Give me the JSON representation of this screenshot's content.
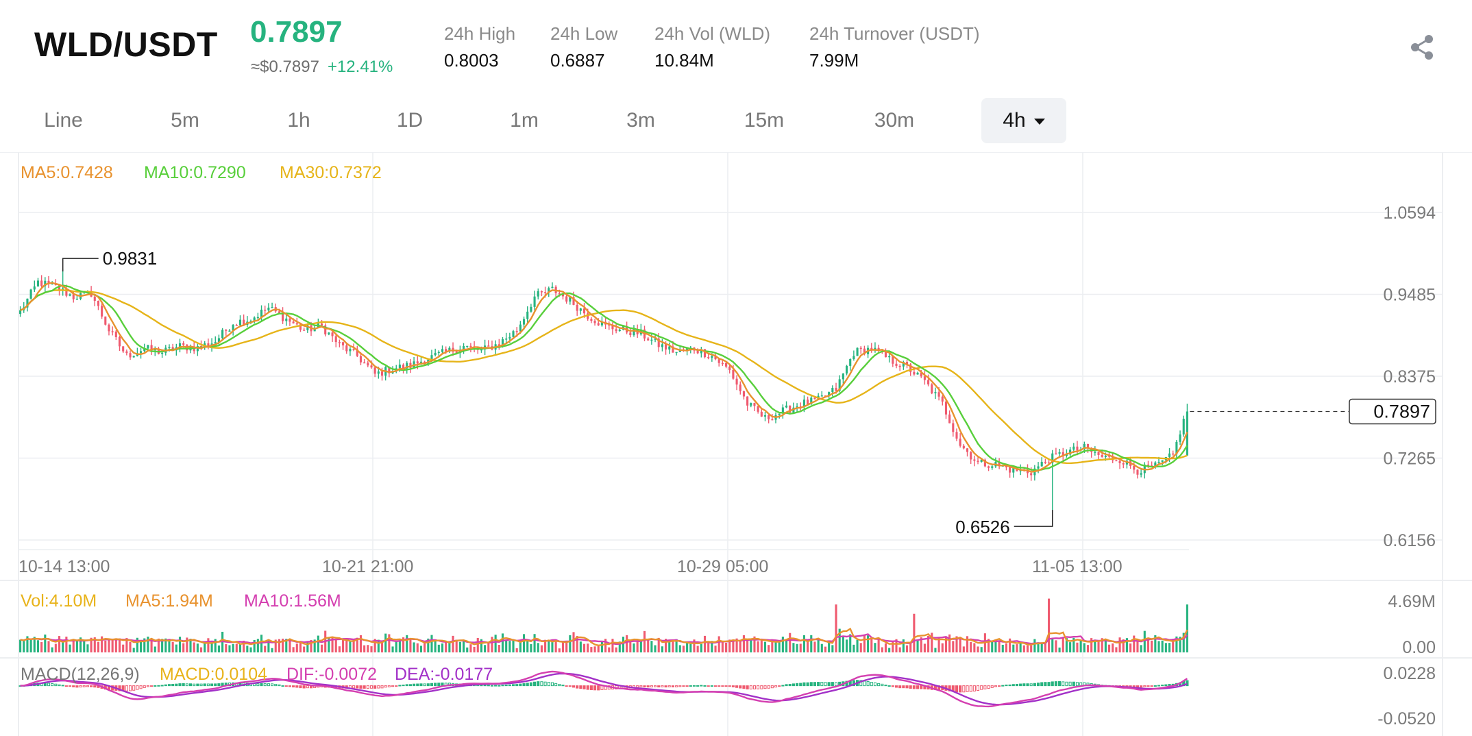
{
  "header": {
    "pair": "WLD/USDT",
    "price": "0.7897",
    "usd_price": "≈$0.7897",
    "change": "+12.41%",
    "stats": [
      {
        "label": "24h High",
        "value": "0.8003"
      },
      {
        "label": "24h Low",
        "value": "0.6887"
      },
      {
        "label": "24h Vol (WLD)",
        "value": "10.84M"
      },
      {
        "label": "24h Turnover (USDT)",
        "value": "7.99M"
      }
    ],
    "share_icon": "share-icon"
  },
  "timeframes": [
    "Line",
    "5m",
    "1h",
    "1D",
    "1m",
    "3m",
    "15m",
    "30m"
  ],
  "active_timeframe": "4h",
  "colors": {
    "up": "#26b37f",
    "down": "#ef5a6f",
    "ma5": "#e8922e",
    "ma10": "#58cf3b",
    "ma30": "#e6b419",
    "vol": "#e8b31a",
    "dif": "#d43fb0",
    "dea": "#a231c8",
    "grid": "#eceef1",
    "axis_text": "#7a7a7a"
  },
  "chart_data": {
    "type": "candlestick",
    "interval": "4h",
    "ma_legend": [
      "MA5:0.7428",
      "MA10:0.7290",
      "MA30:0.7372"
    ],
    "y_ticks": [
      "1.0594",
      "0.9485",
      "0.8375",
      "0.7265",
      "0.6156"
    ],
    "x_ticks": [
      "10-14 13:00",
      "10-21 21:00",
      "10-29 05:00",
      "11-05 13:00"
    ],
    "ylim": [
      0.6156,
      1.0594
    ],
    "last_price": "0.7897",
    "high_marker": "0.9831",
    "low_marker": "0.6526",
    "grid": true,
    "close_path": [
      [
        0,
        0.925
      ],
      [
        5,
        0.965
      ],
      [
        10,
        0.958
      ],
      [
        15,
        0.945
      ],
      [
        20,
        0.95
      ],
      [
        25,
        0.9
      ],
      [
        30,
        0.865
      ],
      [
        35,
        0.875
      ],
      [
        40,
        0.87
      ],
      [
        45,
        0.878
      ],
      [
        50,
        0.876
      ],
      [
        55,
        0.885
      ],
      [
        60,
        0.91
      ],
      [
        65,
        0.915
      ],
      [
        70,
        0.93
      ],
      [
        75,
        0.915
      ],
      [
        80,
        0.9
      ],
      [
        85,
        0.905
      ],
      [
        90,
        0.88
      ],
      [
        95,
        0.865
      ],
      [
        100,
        0.84
      ],
      [
        105,
        0.848
      ],
      [
        110,
        0.852
      ],
      [
        115,
        0.862
      ],
      [
        120,
        0.87
      ],
      [
        125,
        0.878
      ],
      [
        130,
        0.872
      ],
      [
        135,
        0.882
      ],
      [
        140,
        0.9
      ],
      [
        145,
        0.945
      ],
      [
        150,
        0.955
      ],
      [
        155,
        0.94
      ],
      [
        160,
        0.92
      ],
      [
        165,
        0.905
      ],
      [
        170,
        0.9
      ],
      [
        175,
        0.895
      ],
      [
        180,
        0.88
      ],
      [
        185,
        0.87
      ],
      [
        190,
        0.875
      ],
      [
        195,
        0.865
      ],
      [
        200,
        0.845
      ],
      [
        205,
        0.8
      ],
      [
        210,
        0.78
      ],
      [
        215,
        0.79
      ],
      [
        220,
        0.8
      ],
      [
        225,
        0.805
      ],
      [
        230,
        0.82
      ],
      [
        235,
        0.87
      ],
      [
        240,
        0.875
      ],
      [
        245,
        0.86
      ],
      [
        250,
        0.85
      ],
      [
        255,
        0.83
      ],
      [
        260,
        0.8
      ],
      [
        265,
        0.745
      ],
      [
        270,
        0.72
      ],
      [
        275,
        0.718
      ],
      [
        280,
        0.71
      ],
      [
        285,
        0.708
      ],
      [
        290,
        0.725
      ],
      [
        295,
        0.735
      ],
      [
        300,
        0.74
      ],
      [
        305,
        0.728
      ],
      [
        310,
        0.725
      ],
      [
        315,
        0.71
      ],
      [
        320,
        0.715
      ],
      [
        325,
        0.73
      ],
      [
        327,
        0.763
      ],
      [
        329,
        0.7897
      ]
    ],
    "volume": {
      "legend": [
        "Vol:4.10M",
        "MA5:1.94M",
        "MA10:1.56M"
      ],
      "y_ticks": [
        "4.69M",
        "0.00"
      ],
      "max": 4.69
    },
    "macd": {
      "legend": [
        "MACD(12,26,9)",
        "MACD:0.0104",
        "DIF:-0.0072",
        "DEA:-0.0177"
      ],
      "y_ticks": [
        "0.0228",
        "-0.0520"
      ],
      "ylim": [
        -0.052,
        0.0228
      ]
    }
  }
}
